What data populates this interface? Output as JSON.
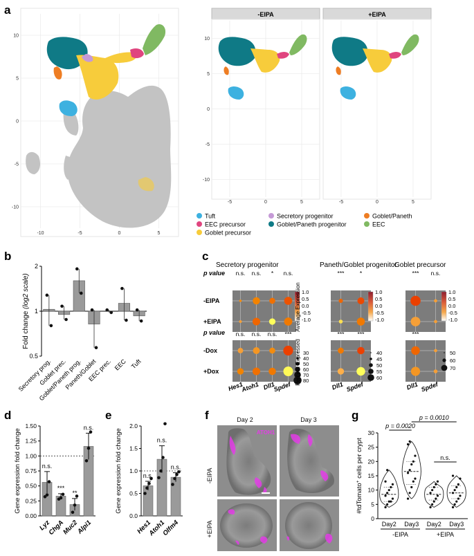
{
  "panel_labels": {
    "a": "a",
    "b": "b",
    "c": "c",
    "d": "d",
    "e": "e",
    "f": "f",
    "g": "g"
  },
  "panel_a": {
    "facet_minus": "-EIPA",
    "facet_plus": "+EIPA",
    "y_ticks_left": [
      "10",
      "5",
      "0",
      "-5",
      "-10"
    ],
    "x_ticks_left": [
      "-10",
      "-5",
      "0",
      "5"
    ],
    "y_ticks_right": [
      "10",
      "5",
      "0",
      "-5",
      "-10"
    ],
    "x_ticks_right": [
      "-5",
      "0",
      "5"
    ],
    "legend": [
      {
        "label": "Tuft",
        "color": "#3db1e0"
      },
      {
        "label": "Secretory progenitor",
        "color": "#c59ad6"
      },
      {
        "label": "Goblet/Paneth",
        "color": "#ee7d23"
      },
      {
        "label": "EEC precursor",
        "color": "#e0457f"
      },
      {
        "label": "Goblet/Paneth progenitor",
        "color": "#0f7a86"
      },
      {
        "label": "EEC",
        "color": "#80b962"
      },
      {
        "label": "Goblet precursor",
        "color": "#f7cc3b"
      }
    ],
    "other_color": "#c3c3c3"
  },
  "chart_data": [
    {
      "id": "b",
      "type": "bar",
      "ylabel": "Fold change",
      "ylabel_scale": "(log2 scale)",
      "yticks": [
        "2",
        "1",
        "0.5"
      ],
      "categories": [
        "Secretory prog.",
        "Goblet prec.",
        "Goblet/Paneth prog.",
        "Paneth/Goblet",
        "EEC prec.",
        "EEC",
        "Tuft"
      ],
      "values": [
        1.03,
        0.95,
        1.6,
        0.82,
        1.0,
        1.13,
        0.93
      ],
      "points": [
        [
          1.28,
          0.8
        ],
        [
          1.08,
          0.88
        ],
        [
          1.92,
          1.32
        ],
        [
          1.02,
          0.57
        ],
        [
          1.02,
          0.98
        ],
        [
          1.42,
          0.87
        ],
        [
          1.02,
          0.86
        ]
      ]
    },
    {
      "id": "c",
      "type": "dotplot",
      "groups": [
        {
          "title": "Secretory progenitor",
          "genes": [
            "Hes1",
            "Atoh1",
            "Dll1",
            "Spdef"
          ],
          "pvals_eipa": [
            "n.s.",
            "n.s.",
            "*",
            "n.s."
          ],
          "pvals_dox": [
            "n.s.",
            "n.s.",
            "n.s.",
            "***"
          ],
          "avg_eipa": [
            [
              0.2,
              0.3,
              0.5,
              0.8
            ],
            [
              0.0,
              0.6,
              -1.0,
              0.4
            ]
          ],
          "pct_eipa": [
            [
              2,
              40,
              25,
              50
            ],
            [
              3,
              45,
              30,
              52
            ]
          ],
          "avg_dox": [
            [
              0.0,
              0.1,
              0.2,
              1.0
            ],
            [
              0.3,
              0.5,
              0.4,
              -0.8
            ]
          ],
          "pct_dox": [
            [
              20,
              35,
              25,
              80
            ],
            [
              30,
              45,
              40,
              78
            ]
          ]
        },
        {
          "title": "Paneth/Goblet progenitor",
          "genes": [
            "Dll1",
            "Spdef"
          ],
          "pvals_eipa": [
            "***",
            "*"
          ],
          "pvals_dox": [
            "***",
            "***"
          ],
          "avg_eipa": [
            [
              0.6,
              0.9
            ],
            [
              -0.6,
              0.4
            ]
          ],
          "pct_eipa": [
            [
              10,
              35
            ],
            [
              8,
              50
            ]
          ],
          "avg_dox": [
            [
              0.4,
              1.0
            ],
            [
              -0.2,
              -1.0
            ]
          ],
          "pct_dox": [
            [
              25,
              40
            ],
            [
              30,
              60
            ]
          ]
        },
        {
          "title": "Goblet precursor",
          "genes": [
            "Dll1",
            "Spdef"
          ],
          "pvals_eipa": [
            "***",
            "n.s."
          ],
          "pvals_dox": [
            "***",
            ""
          ],
          "avg_eipa": [
            [
              1.0,
              0.0
            ],
            [
              0.0,
              0.0
            ]
          ],
          "pct_eipa": [
            [
              85,
              5
            ],
            [
              75,
              5
            ]
          ],
          "avg_dox": [
            [
              0.6,
              0.0
            ],
            [
              0.1,
              0.0
            ]
          ],
          "pct_dox": [
            [
              60,
              5
            ],
            [
              68,
              8
            ]
          ]
        }
      ],
      "row_labels_eipa": [
        "-EIPA",
        "+EIPA"
      ],
      "row_labels_dox": [
        "-Dox",
        "+Dox"
      ],
      "pvalue_label": "p value",
      "colorbar_title": "Average Expression",
      "colorbar_ticks": [
        "1.0",
        "0.5",
        "0.0",
        "-0.5",
        "-1.0"
      ],
      "size_title": "Percent Expressed",
      "size_legends": [
        [
          "30",
          "40",
          "50",
          "60",
          "70",
          "80"
        ],
        [
          "40",
          "45",
          "50",
          "55",
          "60"
        ],
        [
          "50",
          "60",
          "70"
        ]
      ]
    },
    {
      "id": "d",
      "type": "bar",
      "ylabel": "Gene expression fold change",
      "yticks": [
        "1.50",
        "1.25",
        "1.00",
        "0.75",
        "0.50",
        "0.25",
        "0.00"
      ],
      "categories": [
        "Lyz",
        "ChgA",
        "Muc2",
        "Alpi1"
      ],
      "values": [
        0.56,
        0.33,
        0.19,
        1.16
      ],
      "errors": [
        0.18,
        0.04,
        0.1,
        0.22
      ],
      "sig": [
        "n.s.",
        "***",
        "**",
        "n.s."
      ],
      "points": [
        [
          0.32,
          0.35,
          0.57
        ],
        [
          0.28,
          0.3,
          0.36
        ],
        [
          0.06,
          0.18,
          0.33
        ],
        [
          0.92,
          1.13,
          1.4
        ]
      ]
    },
    {
      "id": "e",
      "type": "bar",
      "ylabel": "Gene expression fold change",
      "yticks": [
        "2.0",
        "1.5",
        "1.0",
        "0.5",
        "0.0"
      ],
      "categories": [
        "Hes1",
        "Atoh1",
        "Olfm4"
      ],
      "values": [
        0.67,
        1.26,
        0.86
      ],
      "errors": [
        0.1,
        0.3,
        0.1
      ],
      "sig": [
        "n.s.",
        "n.s.",
        "n.s."
      ],
      "points": [
        [
          0.5,
          0.62,
          0.72,
          0.83
        ],
        [
          0.85,
          1.0,
          1.3,
          2.05
        ],
        [
          0.7,
          0.83,
          0.92,
          0.98
        ]
      ]
    },
    {
      "id": "g",
      "type": "violin",
      "ylabel": "#tdTomato+ cells per crypt",
      "ylabel_main": "#tdTomato",
      "ylabel_sup": "+",
      "ylabel_rest": " cells per crypt",
      "yticks": [
        "0",
        "5",
        "10",
        "15",
        "20",
        "25",
        "30"
      ],
      "ymax": 30,
      "categories": [
        "Day2",
        "Day3",
        "Day2",
        "Day3"
      ],
      "condition_labels": [
        "-EIPA",
        "+EIPA"
      ],
      "medians": [
        8.5,
        16.5,
        8.5,
        9
      ],
      "q1": [
        6,
        12,
        6.5,
        7
      ],
      "q3": [
        11,
        20,
        11,
        11.5
      ],
      "points": [
        [
          4,
          5,
          6,
          6,
          7,
          8,
          9,
          10,
          11,
          12,
          13,
          17
        ],
        [
          7,
          9,
          11,
          13,
          14,
          16,
          17,
          19,
          20,
          22,
          26,
          27
        ],
        [
          4,
          5,
          6,
          7,
          8,
          9,
          10,
          11,
          12,
          13
        ],
        [
          4,
          5,
          6,
          7,
          8,
          9,
          10,
          11,
          12,
          14,
          15
        ]
      ],
      "comparisons": [
        {
          "label": "p = 0.0020"
        },
        {
          "label": "p = 0.0010"
        },
        {
          "label": "n.s."
        }
      ]
    }
  ],
  "panel_f": {
    "col_labels": [
      "Day 2",
      "Day 3"
    ],
    "row_labels": [
      "-EIPA",
      "+EIPA"
    ],
    "stain_label": "ATOH1"
  }
}
